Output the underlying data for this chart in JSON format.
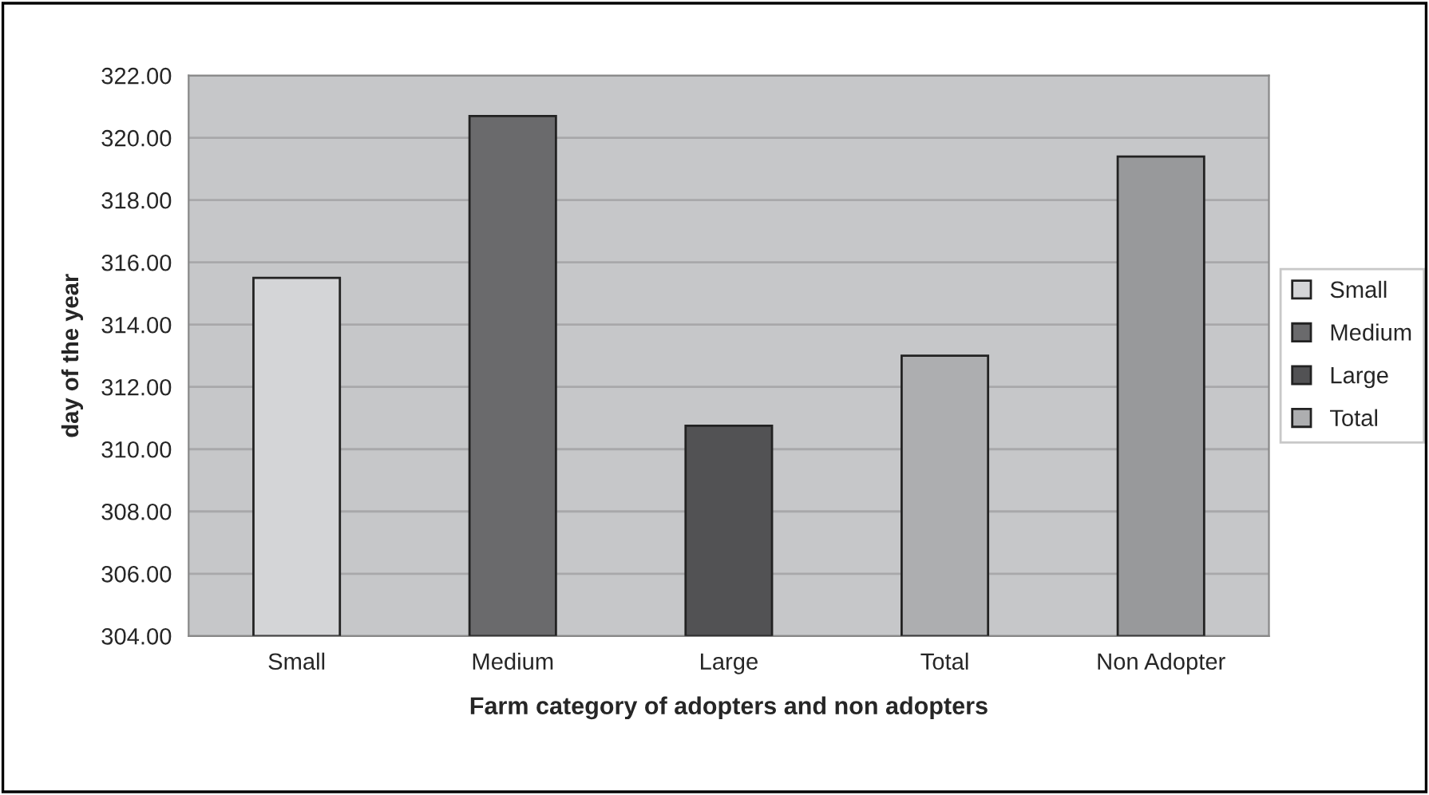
{
  "chart_data": {
    "type": "bar",
    "xlabel": "Farm category of adopters and non adopters",
    "ylabel": "day of the year",
    "categories": [
      "Small",
      "Medium",
      "Large",
      "Total",
      "Non Adopter"
    ],
    "series": [
      {
        "name": "Small",
        "color": "#d4d5d7",
        "values": [
          315.5,
          null,
          null,
          null,
          null
        ]
      },
      {
        "name": "Medium",
        "color": "#6a6a6c",
        "values": [
          null,
          320.7,
          null,
          null,
          null
        ]
      },
      {
        "name": "Large",
        "color": "#525254",
        "values": [
          null,
          null,
          310.75,
          null,
          null
        ]
      },
      {
        "name": "Total",
        "color": "#adaeb0",
        "values": [
          null,
          null,
          null,
          313.0,
          null
        ]
      },
      {
        "color": "#98999b",
        "values": [
          null,
          null,
          null,
          null,
          319.4
        ]
      }
    ],
    "ylim": [
      304,
      322
    ],
    "yticks": [
      {
        "value": 304,
        "label": "304.00"
      },
      {
        "value": 306,
        "label": "306.00"
      },
      {
        "value": 308,
        "label": "308.00"
      },
      {
        "value": 310,
        "label": "310.00"
      },
      {
        "value": 312,
        "label": "312.00"
      },
      {
        "value": 314,
        "label": "314.00"
      },
      {
        "value": 316,
        "label": "316.00"
      },
      {
        "value": 318,
        "label": "318.00"
      },
      {
        "value": 320,
        "label": "320.00"
      },
      {
        "value": 322,
        "label": "322.00"
      }
    ],
    "grid": "y",
    "legend": "right"
  }
}
